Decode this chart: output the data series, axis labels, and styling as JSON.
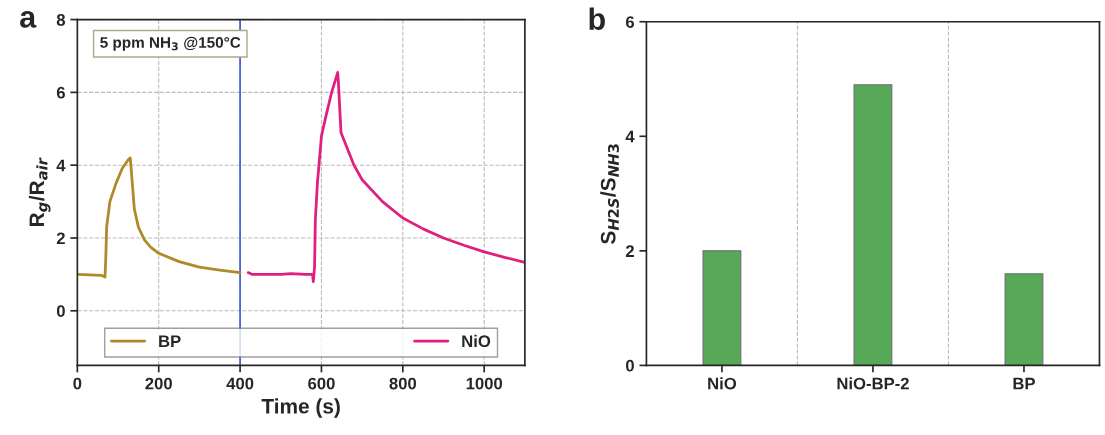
{
  "chart_data": [
    {
      "type": "line",
      "title": "a",
      "xlabel": "Time (s)",
      "ylabel": "R$_{g}$/R$_{air}$",
      "xlim": [
        0,
        1100
      ],
      "xticks": [
        0,
        200,
        400,
        600,
        800,
        1000
      ],
      "ylim": [
        -1.5,
        8
      ],
      "yticks": [
        0,
        2,
        4,
        6,
        8
      ],
      "grid": true,
      "legend": "bottom",
      "series": [
        {
          "name": "BP",
          "color": "#b08a2a",
          "x": [
            0,
            60,
            68,
            70,
            72,
            80,
            95,
            110,
            125,
            130,
            133,
            140,
            150,
            165,
            180,
            200,
            250,
            300,
            350,
            400
          ],
          "values": [
            1.0,
            0.97,
            0.93,
            1.5,
            2.3,
            3.0,
            3.5,
            3.9,
            4.15,
            4.2,
            3.8,
            2.8,
            2.3,
            1.95,
            1.75,
            1.58,
            1.35,
            1.2,
            1.12,
            1.05
          ]
        },
        {
          "name": "NiO",
          "color": "#e0207f",
          "x": [
            420,
            430,
            500,
            525,
            560,
            578,
            580,
            583,
            585,
            590,
            600,
            610,
            625,
            640,
            642,
            648,
            655,
            680,
            700,
            750,
            800,
            850,
            900,
            950,
            1000,
            1050,
            1100
          ],
          "values": [
            1.05,
            1.0,
            1.0,
            1.02,
            1.0,
            1.0,
            0.8,
            1.2,
            2.5,
            3.5,
            4.8,
            5.3,
            6.0,
            6.55,
            6.2,
            4.9,
            4.7,
            4.0,
            3.6,
            3.0,
            2.55,
            2.25,
            2.0,
            1.8,
            1.62,
            1.47,
            1.33
          ]
        }
      ],
      "ref_lines": [
        {
          "axis": "x",
          "value": 400,
          "color": "#3a5bd8"
        }
      ],
      "annotations": [
        "5 ppm NH$_{3}$ @150°C"
      ]
    },
    {
      "type": "bar",
      "title": "b",
      "ylabel": "S$_{H2S}$/S$_{NH3}$",
      "categories": [
        "NiO",
        "NiO-BP-2",
        "BP"
      ],
      "values": [
        2.0,
        4.9,
        1.6
      ],
      "color": "#3a9a3a",
      "ylim": [
        0,
        6
      ],
      "yticks": [
        0,
        2,
        4,
        6
      ],
      "grid": "x"
    }
  ]
}
